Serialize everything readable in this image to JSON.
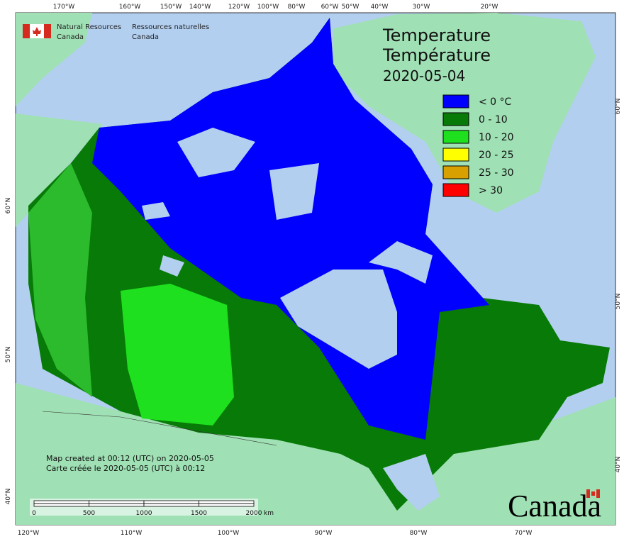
{
  "header": {
    "agency_en": "Natural Resources",
    "country_en": "Canada",
    "agency_fr": "Ressources naturelles",
    "country_fr": "Canada"
  },
  "title": {
    "en": "Temperature",
    "fr": "Température",
    "date": "2020-05-04"
  },
  "legend": [
    {
      "label": "< 0 °C",
      "color": "#0000ff"
    },
    {
      "label": "0 - 10",
      "color": "#077a07"
    },
    {
      "label": "10 - 20",
      "color": "#1ee01e"
    },
    {
      "label": "20 - 25",
      "color": "#ffff00"
    },
    {
      "label": "25 - 30",
      "color": "#d8a000"
    },
    {
      "label": "> 30",
      "color": "#ff0000"
    }
  ],
  "graticule": {
    "top": [
      "170°W",
      "160°W",
      "150°W",
      "140°W",
      "120°W",
      "100°W",
      "80°W",
      "60°W",
      "50°W",
      "40°W",
      "30°W",
      "20°W"
    ],
    "bottom": [
      "120°W",
      "110°W",
      "100°W",
      "90°W",
      "80°W",
      "70°W"
    ],
    "left": [
      "60°N",
      "50°N",
      "40°N"
    ],
    "right": [
      "60°N",
      "50°N",
      "40°N"
    ]
  },
  "credits": [
    "Map created at 00:12 (UTC) on 2020-05-05",
    "Carte créée le 2020-05-05 (UTC) à 00:12"
  ],
  "scale_bar": {
    "labels": [
      0,
      500,
      1000,
      1500,
      2000
    ],
    "unit": "km"
  },
  "wordmark": "Canada"
}
